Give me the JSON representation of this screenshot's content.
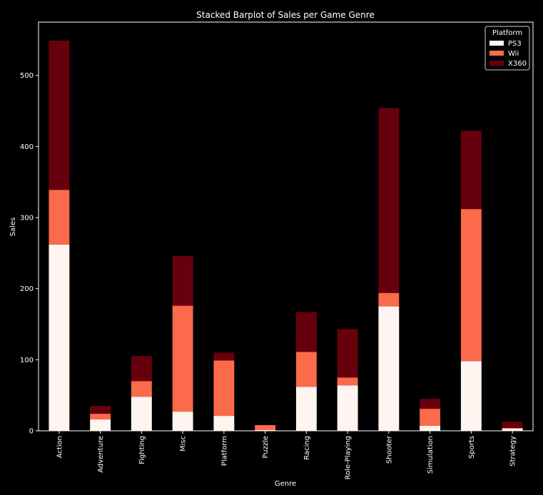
{
  "chart_data": {
    "type": "bar",
    "stacked": true,
    "title": "Stacked Barplot of Sales per Game Genre",
    "xlabel": "Genre",
    "ylabel": "Sales",
    "ylim": [
      0,
      575
    ],
    "yticks": [
      0,
      100,
      200,
      300,
      400,
      500
    ],
    "categories": [
      "Action",
      "Adventure",
      "Fighting",
      "Misc",
      "Platform",
      "Puzzle",
      "Racing",
      "Role-Playing",
      "Shooter",
      "Simulation",
      "Sports",
      "Strategy"
    ],
    "series": [
      {
        "name": "PS3",
        "color": "#fff5f0",
        "values": [
          262,
          16,
          48,
          27,
          21,
          1,
          62,
          64,
          175,
          7,
          98,
          3
        ]
      },
      {
        "name": "Wii",
        "color": "#fb6a4a",
        "values": [
          77,
          8,
          22,
          149,
          78,
          7,
          49,
          11,
          19,
          24,
          214,
          1
        ]
      },
      {
        "name": "X360",
        "color": "#67000d",
        "values": [
          210,
          11,
          35,
          70,
          11,
          0,
          56,
          68,
          260,
          14,
          110,
          9
        ]
      }
    ],
    "legend": {
      "title": "Platform",
      "placement": "top-right"
    },
    "grid": false
  }
}
